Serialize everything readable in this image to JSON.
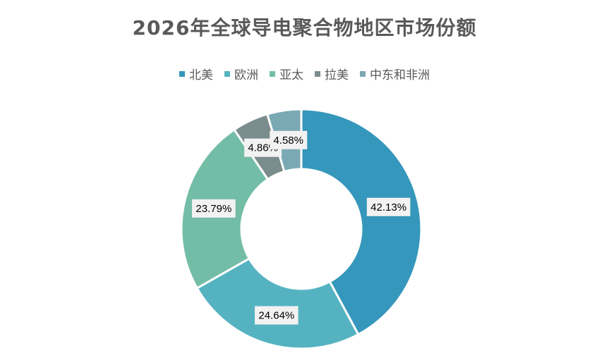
{
  "chart_data": {
    "type": "pie",
    "title": "2026年全球导电聚合物地区市场份额",
    "categories": [
      "北美",
      "欧洲",
      "亚太",
      "拉美",
      "中东和非洲"
    ],
    "values": [
      42.13,
      24.64,
      23.79,
      4.86,
      4.58
    ],
    "value_labels": [
      "42.13%",
      "24.64%",
      "23.79%",
      "4.86%",
      "4.58%"
    ],
    "colors": [
      "#3597bb",
      "#55b3c1",
      "#73bda6",
      "#7a8c8c",
      "#7aa9b4"
    ],
    "donut": true,
    "legend_position": "top"
  }
}
